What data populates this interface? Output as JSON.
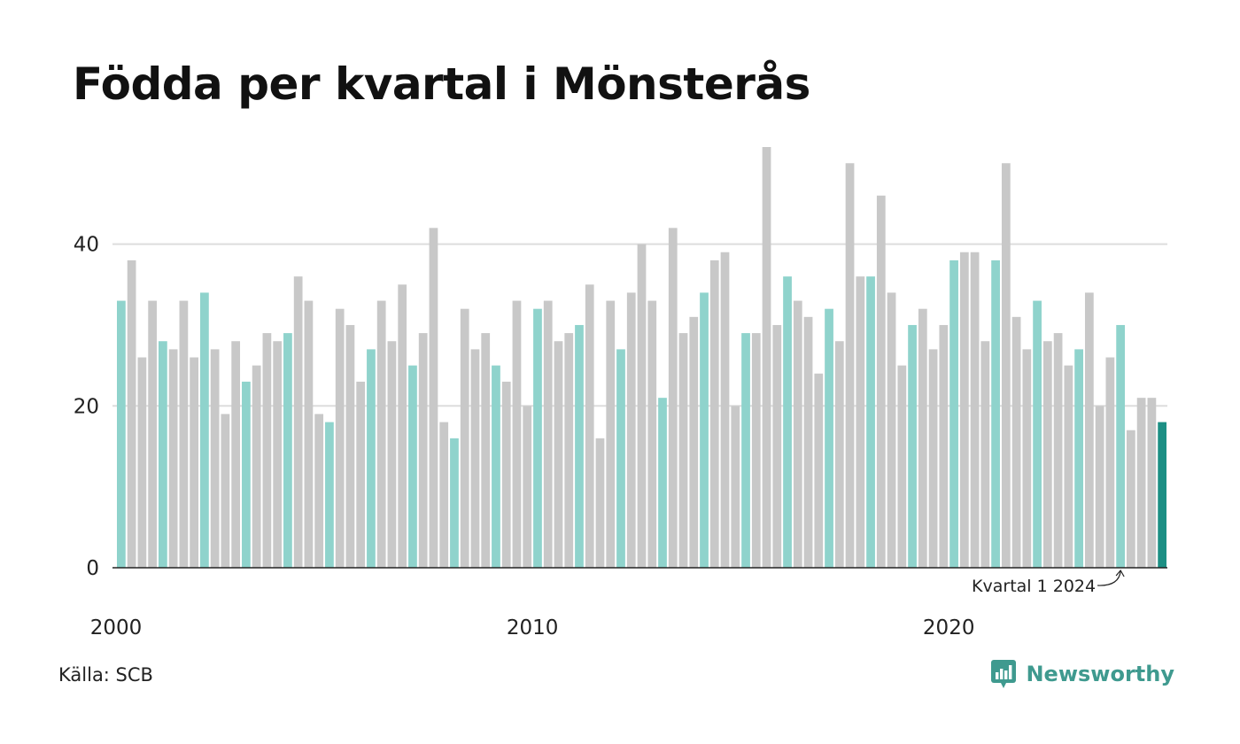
{
  "title": "Födda per kvartal i Mönsterås",
  "source": "Källa: SCB",
  "brand": {
    "name": "Newsworthy",
    "icon": "newsworthy-logo-icon"
  },
  "colors": {
    "q1": "#8fd3cc",
    "other": "#c8c8c8",
    "latest": "#1c8f84",
    "grid": "#dddddd",
    "axis": "#222222"
  },
  "chart_data": {
    "type": "bar",
    "title": "Födda per kvartal i Mönsterås",
    "xlabel": "",
    "ylabel": "",
    "ylim": [
      0,
      52
    ],
    "yticks": [
      0,
      20,
      40
    ],
    "xticks": [
      {
        "label": "2000",
        "index": 0
      },
      {
        "label": "2010",
        "index": 40
      },
      {
        "label": "2020",
        "index": 80
      }
    ],
    "grid": true,
    "highlight_rule": "first quarter of each year highlighted, latest quarter darkest",
    "annotation": {
      "text": "Kvartal 1 2024",
      "index": 96
    },
    "categories": [
      "2000 K1",
      "2000 K2",
      "2000 K3",
      "2000 K4",
      "2001 K1",
      "2001 K2",
      "2001 K3",
      "2001 K4",
      "2002 K1",
      "2002 K2",
      "2002 K3",
      "2002 K4",
      "2003 K1",
      "2003 K2",
      "2003 K3",
      "2003 K4",
      "2004 K1",
      "2004 K2",
      "2004 K3",
      "2004 K4",
      "2005 K1",
      "2005 K2",
      "2005 K3",
      "2005 K4",
      "2006 K1",
      "2006 K2",
      "2006 K3",
      "2006 K4",
      "2007 K1",
      "2007 K2",
      "2007 K3",
      "2007 K4",
      "2008 K1",
      "2008 K2",
      "2008 K3",
      "2008 K4",
      "2009 K1",
      "2009 K2",
      "2009 K3",
      "2009 K4",
      "2010 K1",
      "2010 K2",
      "2010 K3",
      "2010 K4",
      "2011 K1",
      "2011 K2",
      "2011 K3",
      "2011 K4",
      "2012 K1",
      "2012 K2",
      "2012 K3",
      "2012 K4",
      "2013 K1",
      "2013 K2",
      "2013 K3",
      "2013 K4",
      "2014 K1",
      "2014 K2",
      "2014 K3",
      "2014 K4",
      "2015 K1",
      "2015 K2",
      "2015 K3",
      "2015 K4",
      "2016 K1",
      "2016 K2",
      "2016 K3",
      "2016 K4",
      "2017 K1",
      "2017 K2",
      "2017 K3",
      "2017 K4",
      "2018 K1",
      "2018 K2",
      "2018 K3",
      "2018 K4",
      "2019 K1",
      "2019 K2",
      "2019 K3",
      "2019 K4",
      "2020 K1",
      "2020 K2",
      "2020 K3",
      "2020 K4",
      "2021 K1",
      "2021 K2",
      "2021 K3",
      "2021 K4",
      "2022 K1",
      "2022 K2",
      "2022 K3",
      "2022 K4",
      "2023 K1",
      "2023 K2",
      "2023 K3",
      "2023 K4",
      "2024 K1",
      "2024 K2",
      "2024 K3",
      "2024 K4",
      "2025 K1"
    ],
    "values": [
      33,
      38,
      26,
      33,
      28,
      27,
      33,
      26,
      34,
      27,
      19,
      28,
      23,
      25,
      29,
      28,
      29,
      36,
      33,
      19,
      18,
      32,
      30,
      23,
      27,
      33,
      28,
      35,
      25,
      29,
      42,
      18,
      16,
      32,
      27,
      29,
      25,
      23,
      33,
      20,
      32,
      33,
      28,
      29,
      30,
      35,
      16,
      33,
      27,
      34,
      40,
      33,
      21,
      42,
      29,
      31,
      34,
      38,
      39,
      20,
      29,
      29,
      52,
      30,
      36,
      33,
      31,
      24,
      32,
      28,
      50,
      36,
      36,
      46,
      34,
      25,
      30,
      32,
      27,
      30,
      38,
      39,
      39,
      28,
      38,
      50,
      31,
      27,
      33,
      28,
      29,
      25,
      27,
      34,
      20,
      26,
      30,
      17,
      21,
      21,
      18
    ]
  }
}
